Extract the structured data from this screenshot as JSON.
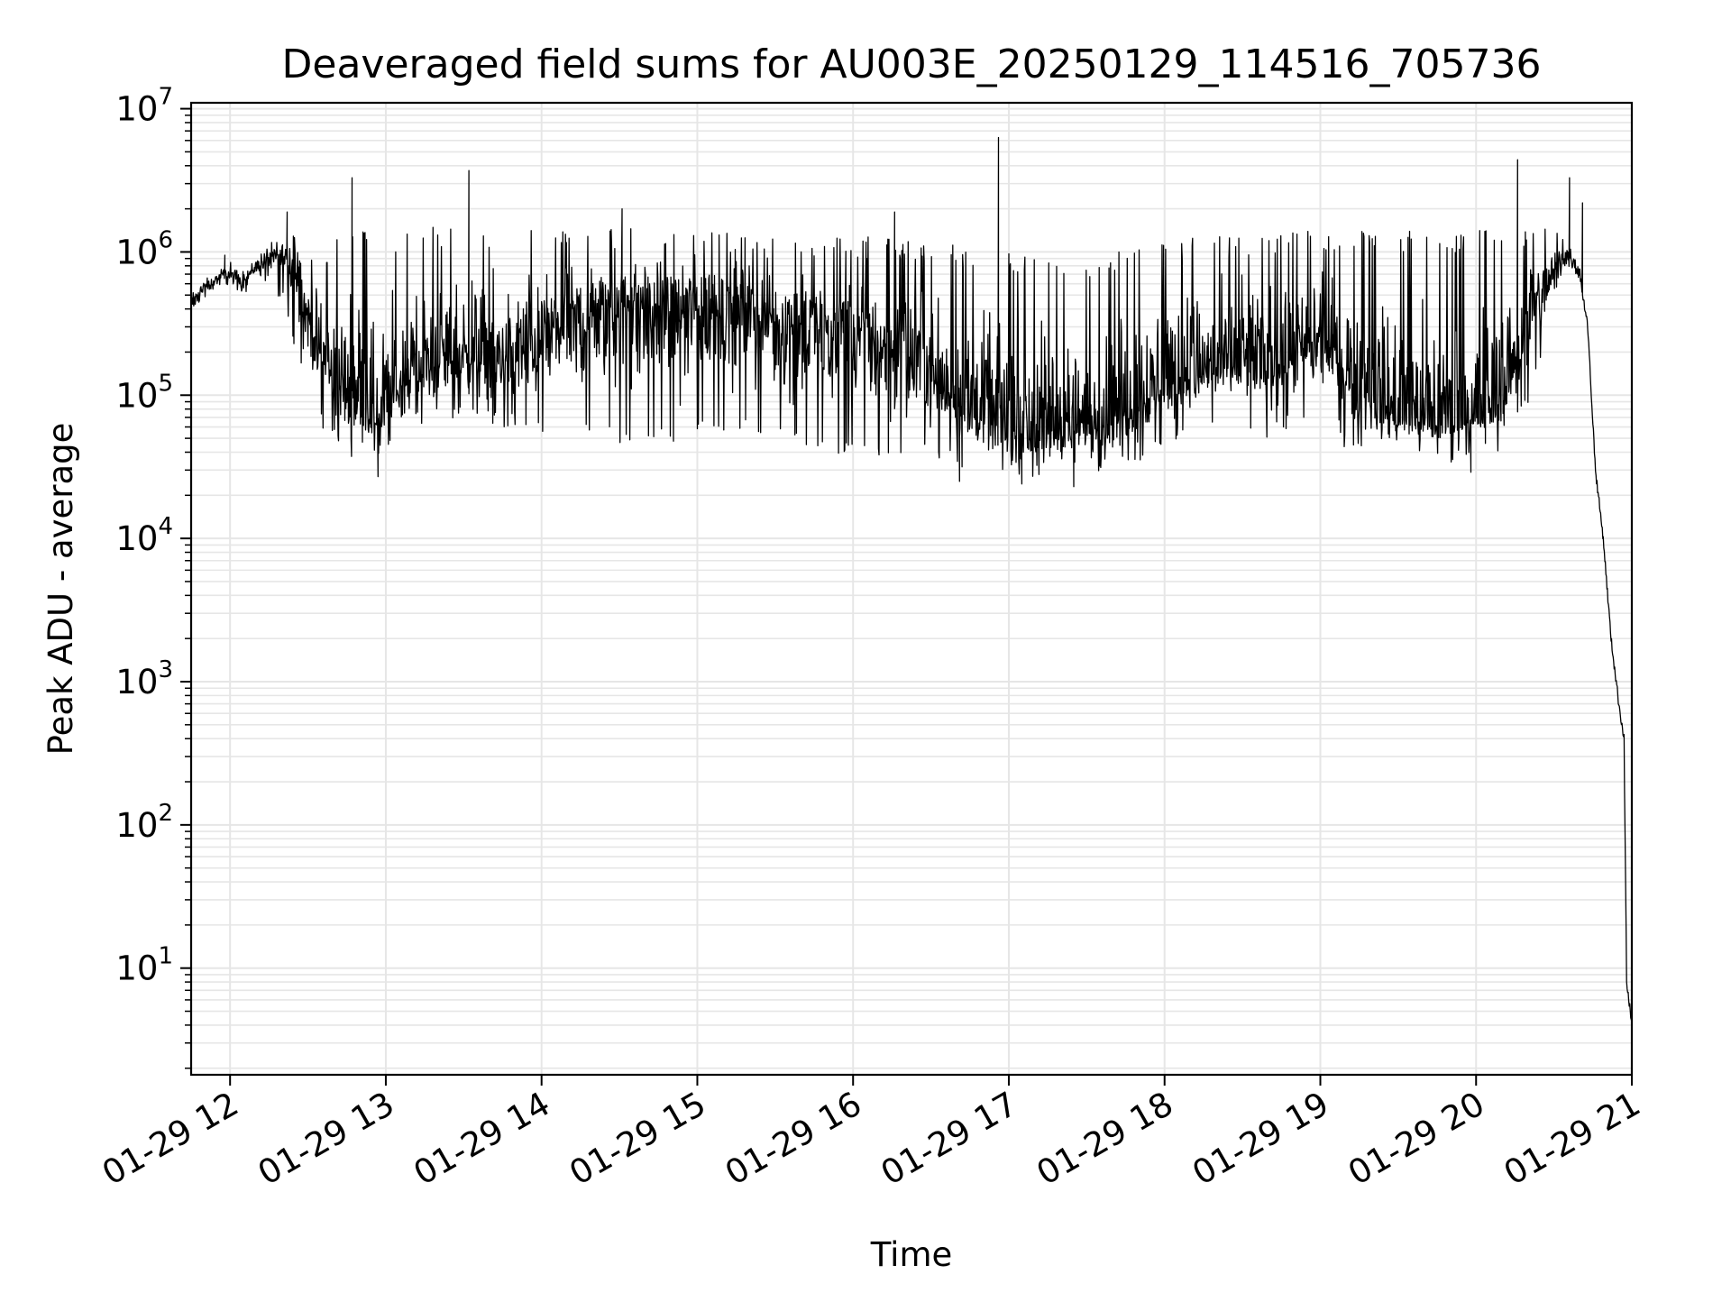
{
  "chart_data": {
    "type": "line",
    "title": "Deaveraged field sums for AU003E_20250129_114516_705736",
    "xlabel": "Time",
    "ylabel": "Peak ADU - average",
    "yscale": "log",
    "grid": true,
    "line_color": "#000000",
    "grid_color": "#e6e6e6",
    "xlim": [
      "2025-01-29T11:45",
      "2025-01-29T21:00"
    ],
    "ylim": [
      1.8,
      11000000
    ],
    "x_ticks": [
      {
        "t": "2025-01-29T12:00",
        "label": "01-29 12"
      },
      {
        "t": "2025-01-29T13:00",
        "label": "01-29 13"
      },
      {
        "t": "2025-01-29T14:00",
        "label": "01-29 14"
      },
      {
        "t": "2025-01-29T15:00",
        "label": "01-29 15"
      },
      {
        "t": "2025-01-29T16:00",
        "label": "01-29 16"
      },
      {
        "t": "2025-01-29T17:00",
        "label": "01-29 17"
      },
      {
        "t": "2025-01-29T18:00",
        "label": "01-29 18"
      },
      {
        "t": "2025-01-29T19:00",
        "label": "01-29 19"
      },
      {
        "t": "2025-01-29T20:00",
        "label": "01-29 20"
      },
      {
        "t": "2025-01-29T21:00",
        "label": "01-29 21"
      }
    ],
    "y_ticks": [
      {
        "value": 10,
        "base": "10",
        "exp": "1"
      },
      {
        "value": 100,
        "base": "10",
        "exp": "2"
      },
      {
        "value": 1000,
        "base": "10",
        "exp": "3"
      },
      {
        "value": 10000,
        "base": "10",
        "exp": "4"
      },
      {
        "value": 100000,
        "base": "10",
        "exp": "5"
      },
      {
        "value": 1000000,
        "base": "10",
        "exp": "6"
      },
      {
        "value": 10000000,
        "base": "10",
        "exp": "7"
      }
    ],
    "series": [
      {
        "x": [
          "2025-01-29T11:45",
          "2025-01-29T11:50",
          "2025-01-29T11:55",
          "2025-01-29T12:00",
          "2025-01-29T12:05",
          "2025-01-29T12:10",
          "2025-01-29T12:15",
          "2025-01-29T12:20",
          "2025-01-29T12:25",
          "2025-01-29T12:30",
          "2025-01-29T12:35",
          "2025-01-29T12:40",
          "2025-01-29T12:45",
          "2025-01-29T12:50",
          "2025-01-29T12:55",
          "2025-01-29T13:00",
          "2025-01-29T13:10",
          "2025-01-29T13:20",
          "2025-01-29T13:30",
          "2025-01-29T13:40",
          "2025-01-29T13:50",
          "2025-01-29T14:00",
          "2025-01-29T14:10",
          "2025-01-29T14:20",
          "2025-01-29T14:30",
          "2025-01-29T14:40",
          "2025-01-29T14:50",
          "2025-01-29T15:00",
          "2025-01-29T15:10",
          "2025-01-29T15:20",
          "2025-01-29T15:30",
          "2025-01-29T15:40",
          "2025-01-29T15:50",
          "2025-01-29T16:00",
          "2025-01-29T16:10",
          "2025-01-29T16:20",
          "2025-01-29T16:30",
          "2025-01-29T16:40",
          "2025-01-29T16:50",
          "2025-01-29T17:00",
          "2025-01-29T17:10",
          "2025-01-29T17:20",
          "2025-01-29T17:30",
          "2025-01-29T17:40",
          "2025-01-29T17:50",
          "2025-01-29T18:00",
          "2025-01-29T18:10",
          "2025-01-29T18:20",
          "2025-01-29T18:30",
          "2025-01-29T18:40",
          "2025-01-29T18:50",
          "2025-01-29T19:00",
          "2025-01-29T19:10",
          "2025-01-29T19:20",
          "2025-01-29T19:30",
          "2025-01-29T19:40",
          "2025-01-29T19:50",
          "2025-01-29T20:00",
          "2025-01-29T20:10",
          "2025-01-29T20:20",
          "2025-01-29T20:30",
          "2025-01-29T20:35",
          "2025-01-29T20:40",
          "2025-01-29T20:43",
          "2025-01-29T20:46",
          "2025-01-29T20:49",
          "2025-01-29T20:52",
          "2025-01-29T20:55",
          "2025-01-29T20:57",
          "2025-01-29T20:58",
          "2025-01-29T21:00"
        ],
        "y_mid": [
          450000,
          550000,
          650000,
          700000,
          620000,
          800000,
          900000,
          950000,
          700000,
          350000,
          200000,
          130000,
          90000,
          110000,
          70000,
          80000,
          140000,
          160000,
          200000,
          170000,
          180000,
          250000,
          300000,
          350000,
          400000,
          420000,
          380000,
          400000,
          420000,
          380000,
          330000,
          300000,
          280000,
          250000,
          230000,
          180000,
          150000,
          90000,
          70000,
          55000,
          50000,
          55000,
          60000,
          70000,
          90000,
          130000,
          140000,
          150000,
          170000,
          160000,
          180000,
          220000,
          150000,
          90000,
          70000,
          65000,
          60000,
          70000,
          90000,
          350000,
          700000,
          1000000,
          700000,
          300000,
          30000,
          10000,
          2000,
          700,
          400,
          8,
          4
        ],
        "y_low": [
          350000,
          450000,
          500000,
          550000,
          500000,
          600000,
          500000,
          400000,
          200000,
          100000,
          60000,
          50000,
          40000,
          30000,
          35000,
          40000,
          60000,
          70000,
          65000,
          60000,
          60000,
          50000,
          55000,
          50000,
          45000,
          45000,
          45000,
          50000,
          55000,
          55000,
          50000,
          45000,
          40000,
          35000,
          35000,
          30000,
          40000,
          30000,
          30000,
          28000,
          27000,
          26000,
          28000,
          30000,
          33000,
          40000,
          55000,
          60000,
          55000,
          50000,
          60000,
          70000,
          40000,
          36000,
          35000,
          35000,
          33000,
          40000,
          40000,
          80000,
          300000,
          700000,
          500000,
          200000,
          20000,
          8000,
          1500,
          500,
          300,
          4,
          3.8
        ],
        "y_high": [
          550000,
          700000,
          800000,
          850000,
          800000,
          1000000,
          1300000,
          1500000,
          1300000,
          1000000,
          800000,
          1200000,
          1400000,
          1500000,
          1400000,
          1400000,
          1450000,
          1500000,
          1500000,
          1500000,
          1500000,
          1450000,
          1500000,
          1500000,
          1500000,
          1450000,
          1450000,
          1450000,
          1400000,
          1400000,
          1350000,
          1300000,
          1300000,
          1300000,
          1250000,
          1200000,
          1200000,
          1100000,
          1000000,
          1000000,
          900000,
          800000,
          900000,
          1000000,
          1100000,
          1200000,
          1300000,
          1300000,
          1300000,
          1400000,
          1400000,
          1400000,
          1400000,
          1400000,
          1400000,
          1400000,
          1400000,
          1400000,
          1500000,
          1500000,
          1500000,
          1300000,
          1000000,
          400000,
          40000,
          15000,
          3000,
          1000,
          500,
          10,
          5
        ],
        "spikes": [
          {
            "t": "2025-01-29T11:58",
            "y": 950000
          },
          {
            "t": "2025-01-29T12:22",
            "y": 1900000
          },
          {
            "t": "2025-01-29T12:47",
            "y": 3300000
          },
          {
            "t": "2025-01-29T13:32",
            "y": 3700000
          },
          {
            "t": "2025-01-29T14:31",
            "y": 2000000
          },
          {
            "t": "2025-01-29T16:16",
            "y": 1900000
          },
          {
            "t": "2025-01-29T16:56",
            "y": 6300000
          },
          {
            "t": "2025-01-29T20:16",
            "y": 4400000
          },
          {
            "t": "2025-01-29T20:36",
            "y": 3300000
          },
          {
            "t": "2025-01-29T20:41",
            "y": 2200000
          }
        ],
        "dips": [
          {
            "t": "2025-01-29T12:57",
            "y": 27000
          },
          {
            "t": "2025-01-29T16:41",
            "y": 25000
          },
          {
            "t": "2025-01-29T17:05",
            "y": 24000
          },
          {
            "t": "2025-01-29T17:25",
            "y": 23000
          },
          {
            "t": "2025-01-29T19:58",
            "y": 29000
          }
        ]
      }
    ]
  }
}
